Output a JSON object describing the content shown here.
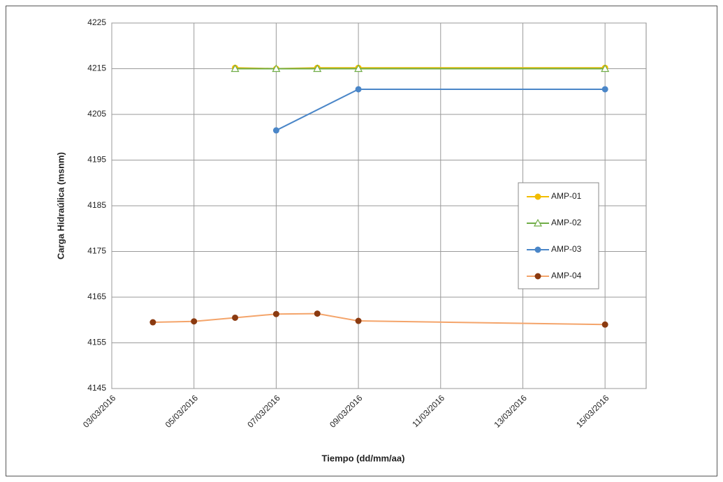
{
  "chart_data": {
    "type": "line",
    "xlabel": "Tiempo  (dd/mm/aa)",
    "ylabel": "Carga Hidraúlica (msnm)",
    "xlim": [
      "03/03/2016",
      "16/03/2016"
    ],
    "xticks": [
      "03/03/2016",
      "05/03/2016",
      "07/03/2016",
      "09/03/2016",
      "11/03/2016",
      "13/03/2016",
      "15/03/2016"
    ],
    "ylim": [
      4145,
      4225
    ],
    "yticks": [
      4145,
      4155,
      4165,
      4175,
      4185,
      4195,
      4205,
      4215,
      4225
    ],
    "grid": true,
    "legend": "right",
    "series": [
      {
        "name": "AMP-01",
        "color": "#f2bd00",
        "marker": "circle",
        "marker_color": "#f2bd00",
        "x": [
          "06/03/2016",
          "07/03/2016",
          "08/03/2016",
          "09/03/2016",
          "15/03/2016"
        ],
        "values": [
          4215.2,
          4215.0,
          4215.2,
          4215.2,
          4215.2
        ]
      },
      {
        "name": "AMP-02",
        "color": "#70ad47",
        "marker": "triangle",
        "marker_color": "#70ad47",
        "x": [
          "06/03/2016",
          "07/03/2016",
          "08/03/2016",
          "09/03/2016",
          "15/03/2016"
        ],
        "values": [
          4215.0,
          4215.0,
          4215.0,
          4215.0,
          4215.0
        ]
      },
      {
        "name": "AMP-03",
        "color": "#4a86c8",
        "marker": "circle",
        "marker_color": "#4a86c8",
        "x": [
          "07/03/2016",
          "09/03/2016",
          "15/03/2016"
        ],
        "values": [
          4201.5,
          4210.5,
          4210.5
        ]
      },
      {
        "name": "AMP-04",
        "color": "#f4a46a",
        "marker": "circle",
        "marker_color": "#8b3a10",
        "x": [
          "04/03/2016",
          "05/03/2016",
          "06/03/2016",
          "07/03/2016",
          "08/03/2016",
          "09/03/2016",
          "15/03/2016"
        ],
        "values": [
          4159.5,
          4159.7,
          4160.5,
          4161.3,
          4161.4,
          4159.8,
          4159.0
        ]
      }
    ]
  }
}
